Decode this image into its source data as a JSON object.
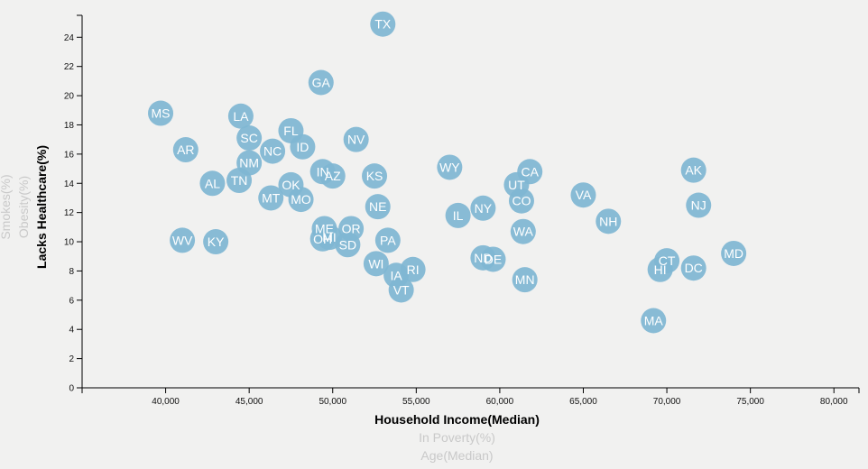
{
  "chart_data": {
    "type": "scatter",
    "xlabel": "Household Income(Median)",
    "ylabel": "Lacks Healthcare(%)",
    "x_axis_options": [
      {
        "label": "Household Income(Median)",
        "active": true
      },
      {
        "label": "In Poverty(%)",
        "active": false
      },
      {
        "label": "Age(Median)",
        "active": false
      }
    ],
    "y_axis_options": [
      {
        "label": "Lacks Healthcare(%)",
        "active": true
      },
      {
        "label": "Obesity(%)",
        "active": false
      },
      {
        "label": "Smokes(%)",
        "active": false
      }
    ],
    "xlim": [
      35000,
      81500
    ],
    "ylim": [
      0,
      25.5
    ],
    "x_ticks": [
      {
        "value": 40000,
        "label": "40,000"
      },
      {
        "value": 45000,
        "label": "45,000"
      },
      {
        "value": 50000,
        "label": "50,000"
      },
      {
        "value": 55000,
        "label": "55,000"
      },
      {
        "value": 60000,
        "label": "60,000"
      },
      {
        "value": 65000,
        "label": "65,000"
      },
      {
        "value": 70000,
        "label": "70,000"
      },
      {
        "value": 75000,
        "label": "75,000"
      },
      {
        "value": 80000,
        "label": "80,000"
      }
    ],
    "y_ticks": [
      {
        "value": 0,
        "label": "0"
      },
      {
        "value": 2,
        "label": "2"
      },
      {
        "value": 4,
        "label": "4"
      },
      {
        "value": 6,
        "label": "6"
      },
      {
        "value": 8,
        "label": "8"
      },
      {
        "value": 10,
        "label": "10"
      },
      {
        "value": 12,
        "label": "12"
      },
      {
        "value": 14,
        "label": "14"
      },
      {
        "value": 16,
        "label": "16"
      },
      {
        "value": 18,
        "label": "18"
      },
      {
        "value": 20,
        "label": "20"
      },
      {
        "value": 22,
        "label": "22"
      },
      {
        "value": 24,
        "label": "24"
      }
    ],
    "marker_color": "#7fb6d2",
    "label_color": "#ffffff",
    "points": [
      {
        "abbr": "TX",
        "x": 53000,
        "y": 24.9
      },
      {
        "abbr": "GA",
        "x": 49300,
        "y": 20.9
      },
      {
        "abbr": "MS",
        "x": 39700,
        "y": 18.8
      },
      {
        "abbr": "LA",
        "x": 44500,
        "y": 18.6
      },
      {
        "abbr": "FL",
        "x": 47500,
        "y": 17.6
      },
      {
        "abbr": "SC",
        "x": 45000,
        "y": 17.1
      },
      {
        "abbr": "NV",
        "x": 51400,
        "y": 17.0
      },
      {
        "abbr": "ID",
        "x": 48200,
        "y": 16.5
      },
      {
        "abbr": "AR",
        "x": 41200,
        "y": 16.3
      },
      {
        "abbr": "NC",
        "x": 46400,
        "y": 16.2
      },
      {
        "abbr": "NM",
        "x": 45000,
        "y": 15.4
      },
      {
        "abbr": "WY",
        "x": 57000,
        "y": 15.1
      },
      {
        "abbr": "IN",
        "x": 49400,
        "y": 14.8
      },
      {
        "abbr": "CA",
        "x": 61800,
        "y": 14.8
      },
      {
        "abbr": "AK",
        "x": 71600,
        "y": 14.9
      },
      {
        "abbr": "AZ",
        "x": 50000,
        "y": 14.5
      },
      {
        "abbr": "KS",
        "x": 52500,
        "y": 14.5
      },
      {
        "abbr": "TN",
        "x": 44400,
        "y": 14.2
      },
      {
        "abbr": "AL",
        "x": 42800,
        "y": 14.0
      },
      {
        "abbr": "OK",
        "x": 47500,
        "y": 13.9
      },
      {
        "abbr": "UT",
        "x": 61000,
        "y": 13.9
      },
      {
        "abbr": "VA",
        "x": 65000,
        "y": 13.2
      },
      {
        "abbr": "MT",
        "x": 46300,
        "y": 13.0
      },
      {
        "abbr": "MO",
        "x": 48100,
        "y": 12.9
      },
      {
        "abbr": "CO",
        "x": 61300,
        "y": 12.8
      },
      {
        "abbr": "NJ",
        "x": 71900,
        "y": 12.5
      },
      {
        "abbr": "NE",
        "x": 52700,
        "y": 12.4
      },
      {
        "abbr": "NY",
        "x": 59000,
        "y": 12.3
      },
      {
        "abbr": "IL",
        "x": 57500,
        "y": 11.8
      },
      {
        "abbr": "NH",
        "x": 66500,
        "y": 11.4
      },
      {
        "abbr": "ME",
        "x": 49500,
        "y": 10.9
      },
      {
        "abbr": "OR",
        "x": 51100,
        "y": 10.9
      },
      {
        "abbr": "WA",
        "x": 61400,
        "y": 10.7
      },
      {
        "abbr": "MI",
        "x": 49800,
        "y": 10.3
      },
      {
        "abbr": "OH",
        "x": 49400,
        "y": 10.2
      },
      {
        "abbr": "WV",
        "x": 41000,
        "y": 10.1
      },
      {
        "abbr": "PA",
        "x": 53300,
        "y": 10.1
      },
      {
        "abbr": "KY",
        "x": 43000,
        "y": 10.0
      },
      {
        "abbr": "SD",
        "x": 50900,
        "y": 9.8
      },
      {
        "abbr": "ND",
        "x": 59000,
        "y": 8.9
      },
      {
        "abbr": "DE",
        "x": 59600,
        "y": 8.8
      },
      {
        "abbr": "CT",
        "x": 70000,
        "y": 8.7
      },
      {
        "abbr": "MD",
        "x": 74000,
        "y": 9.2
      },
      {
        "abbr": "WI",
        "x": 52600,
        "y": 8.5
      },
      {
        "abbr": "RI",
        "x": 54800,
        "y": 8.1
      },
      {
        "abbr": "HI",
        "x": 69600,
        "y": 8.1
      },
      {
        "abbr": "DC",
        "x": 71600,
        "y": 8.2
      },
      {
        "abbr": "IA",
        "x": 53800,
        "y": 7.7
      },
      {
        "abbr": "MN",
        "x": 61500,
        "y": 7.4
      },
      {
        "abbr": "VT",
        "x": 54100,
        "y": 6.7
      },
      {
        "abbr": "MA",
        "x": 69200,
        "y": 4.6
      }
    ]
  }
}
